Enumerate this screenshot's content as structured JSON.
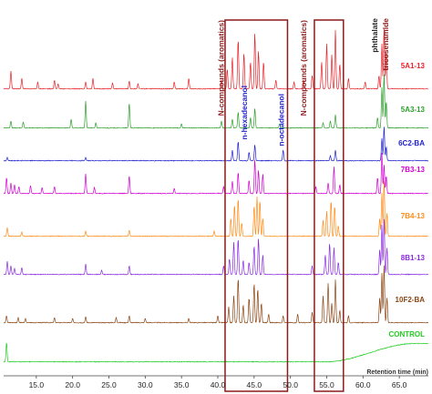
{
  "chart_data": {
    "type": "line",
    "title": "",
    "xlabel": "Retention time (min)",
    "ylabel": "",
    "xlim": [
      10.5,
      69
    ],
    "xticks": [
      15.0,
      20.0,
      25.0,
      30.0,
      35.0,
      40.0,
      45.0,
      50.0,
      55.0,
      60.0,
      65.0
    ],
    "xtick_labels": [
      "15.0",
      "20.0",
      "25.0",
      "30.0",
      "35.0",
      "40.0",
      "45.0",
      "50.0",
      "55.0",
      "60.0",
      "65.0"
    ],
    "grid": false,
    "legend": "right, labels beside each trace",
    "series": [
      {
        "name": "5A1-13",
        "color": "#e8232a",
        "peaks": [
          [
            11.5,
            20
          ],
          [
            13.0,
            12
          ],
          [
            15.2,
            8
          ],
          [
            17.5,
            10
          ],
          [
            18.0,
            6
          ],
          [
            21.8,
            8
          ],
          [
            22.8,
            12
          ],
          [
            25.5,
            7
          ],
          [
            27.8,
            9
          ],
          [
            29.0,
            6
          ],
          [
            34.0,
            8
          ],
          [
            36.0,
            12
          ],
          [
            40.5,
            10
          ],
          [
            41.3,
            22
          ],
          [
            42.0,
            35
          ],
          [
            42.8,
            55
          ],
          [
            43.6,
            40
          ],
          [
            44.5,
            30
          ],
          [
            45.1,
            62
          ],
          [
            45.6,
            42
          ],
          [
            46.3,
            30
          ],
          [
            48.0,
            10
          ],
          [
            50.5,
            8
          ],
          [
            51.8,
            10
          ],
          [
            53.0,
            15
          ],
          [
            54.3,
            30
          ],
          [
            55.0,
            50
          ],
          [
            55.7,
            38
          ],
          [
            56.2,
            65
          ],
          [
            56.8,
            28
          ],
          [
            58.0,
            12
          ],
          [
            60.3,
            8
          ],
          [
            62.2,
            15
          ],
          [
            62.6,
            50
          ],
          [
            62.9,
            68
          ],
          [
            63.2,
            42
          ]
        ]
      },
      {
        "name": "5A3-13",
        "color": "#2ca02c",
        "peaks": [
          [
            11.5,
            8
          ],
          [
            13.2,
            7
          ],
          [
            19.8,
            10
          ],
          [
            21.8,
            30
          ],
          [
            23.2,
            6
          ],
          [
            27.8,
            28
          ],
          [
            35.0,
            5
          ],
          [
            40.5,
            8
          ],
          [
            42.0,
            10
          ],
          [
            42.8,
            18
          ],
          [
            44.5,
            12
          ],
          [
            45.1,
            22
          ],
          [
            48.5,
            5
          ],
          [
            54.5,
            6
          ],
          [
            55.5,
            8
          ],
          [
            56.2,
            15
          ],
          [
            62.0,
            12
          ],
          [
            62.6,
            45
          ],
          [
            62.9,
            60
          ],
          [
            63.2,
            30
          ]
        ]
      },
      {
        "name": "6C2-BA",
        "color": "#2020d0",
        "peaks": [
          [
            11.0,
            4
          ],
          [
            21.8,
            4
          ],
          [
            42.0,
            12
          ],
          [
            42.8,
            22
          ],
          [
            44.3,
            10
          ],
          [
            45.1,
            18
          ],
          [
            49.0,
            12
          ],
          [
            55.5,
            6
          ],
          [
            56.2,
            12
          ],
          [
            62.6,
            25
          ],
          [
            62.9,
            38
          ],
          [
            63.2,
            16
          ]
        ]
      },
      {
        "name": "7B3-13",
        "color": "#d400d4",
        "peaks": [
          [
            10.9,
            18
          ],
          [
            11.5,
            12
          ],
          [
            12.0,
            10
          ],
          [
            12.6,
            8
          ],
          [
            14.2,
            9
          ],
          [
            15.8,
            7
          ],
          [
            17.5,
            8
          ],
          [
            21.8,
            22
          ],
          [
            23.0,
            7
          ],
          [
            27.8,
            20
          ],
          [
            34.0,
            6
          ],
          [
            40.8,
            8
          ],
          [
            42.0,
            14
          ],
          [
            42.8,
            24
          ],
          [
            44.3,
            15
          ],
          [
            45.1,
            38
          ],
          [
            45.6,
            26
          ],
          [
            46.2,
            22
          ],
          [
            53.5,
            8
          ],
          [
            55.2,
            12
          ],
          [
            56.0,
            30
          ],
          [
            56.8,
            10
          ],
          [
            62.0,
            18
          ],
          [
            62.6,
            45
          ],
          [
            62.9,
            32
          ],
          [
            63.2,
            20
          ]
        ]
      },
      {
        "name": "7B4-13",
        "color": "#ff8c1a",
        "peaks": [
          [
            11.0,
            10
          ],
          [
            13.0,
            5
          ],
          [
            21.8,
            6
          ],
          [
            27.8,
            7
          ],
          [
            39.5,
            6
          ],
          [
            41.8,
            20
          ],
          [
            42.3,
            35
          ],
          [
            42.8,
            42
          ],
          [
            43.3,
            15
          ],
          [
            45.0,
            34
          ],
          [
            45.4,
            44
          ],
          [
            45.8,
            40
          ],
          [
            46.2,
            20
          ],
          [
            54.5,
            18
          ],
          [
            55.0,
            28
          ],
          [
            55.6,
            40
          ],
          [
            56.1,
            34
          ],
          [
            56.6,
            12
          ],
          [
            62.3,
            20
          ],
          [
            62.6,
            48
          ],
          [
            62.9,
            62
          ],
          [
            63.3,
            26
          ]
        ]
      },
      {
        "name": "8B1-13",
        "color": "#8a2be2",
        "peaks": [
          [
            11.0,
            15
          ],
          [
            11.5,
            10
          ],
          [
            12.0,
            7
          ],
          [
            13.0,
            8
          ],
          [
            21.8,
            12
          ],
          [
            24.0,
            5
          ],
          [
            27.8,
            10
          ],
          [
            40.8,
            10
          ],
          [
            41.6,
            18
          ],
          [
            42.2,
            36
          ],
          [
            42.8,
            40
          ],
          [
            43.5,
            16
          ],
          [
            44.3,
            14
          ],
          [
            45.0,
            32
          ],
          [
            45.6,
            40
          ],
          [
            46.2,
            22
          ],
          [
            53.0,
            10
          ],
          [
            54.8,
            22
          ],
          [
            55.4,
            35
          ],
          [
            56.0,
            30
          ],
          [
            56.6,
            14
          ],
          [
            62.3,
            28
          ],
          [
            62.6,
            55
          ],
          [
            62.9,
            62
          ],
          [
            63.3,
            30
          ]
        ]
      },
      {
        "name": "10F2-BA",
        "color": "#8b4513",
        "peaks": [
          [
            10.9,
            8
          ],
          [
            12.5,
            6
          ],
          [
            13.5,
            5
          ],
          [
            17.5,
            6
          ],
          [
            20.0,
            5
          ],
          [
            21.8,
            7
          ],
          [
            26.0,
            6
          ],
          [
            27.8,
            8
          ],
          [
            30.0,
            5
          ],
          [
            36.0,
            5
          ],
          [
            40.0,
            8
          ],
          [
            41.5,
            18
          ],
          [
            42.2,
            30
          ],
          [
            42.8,
            50
          ],
          [
            43.5,
            20
          ],
          [
            44.3,
            28
          ],
          [
            45.0,
            44
          ],
          [
            45.5,
            38
          ],
          [
            46.0,
            22
          ],
          [
            47.0,
            10
          ],
          [
            49.0,
            8
          ],
          [
            51.0,
            10
          ],
          [
            53.0,
            12
          ],
          [
            54.5,
            30
          ],
          [
            55.2,
            44
          ],
          [
            55.7,
            22
          ],
          [
            56.2,
            48
          ],
          [
            56.8,
            14
          ],
          [
            58.0,
            8
          ],
          [
            62.3,
            28
          ],
          [
            62.6,
            55
          ],
          [
            62.9,
            64
          ],
          [
            63.3,
            28
          ]
        ]
      },
      {
        "name": "CONTROL",
        "color": "#22cc22",
        "peaks": [
          [
            10.9,
            22
          ]
        ],
        "baseline_rise": {
          "start": 55.0,
          "end": 67.0,
          "height": 20
        }
      }
    ],
    "annotations": [
      {
        "text": "N-compounds (aromatics)",
        "x": 40.8,
        "color": "#8b1a1a"
      },
      {
        "text": "n-hexadecanol",
        "x": 44.0,
        "color": "#2020d0"
      },
      {
        "text": "n-octadecanol",
        "x": 49.1,
        "color": "#2020d0"
      },
      {
        "text": "N-compounds (aromatics)",
        "x": 52.2,
        "color": "#8b1a1a"
      },
      {
        "text": "phthalate",
        "x": 62.0,
        "color": "#222222"
      },
      {
        "text": "tricosenamide",
        "x": 63.5,
        "color": "#8b1a1a"
      }
    ],
    "highlight_regions": [
      {
        "x0": 41.0,
        "x1": 49.6,
        "color": "#8b1a1a"
      },
      {
        "x0": 53.3,
        "x1": 57.3,
        "color": "#8b1a1a"
      }
    ]
  }
}
